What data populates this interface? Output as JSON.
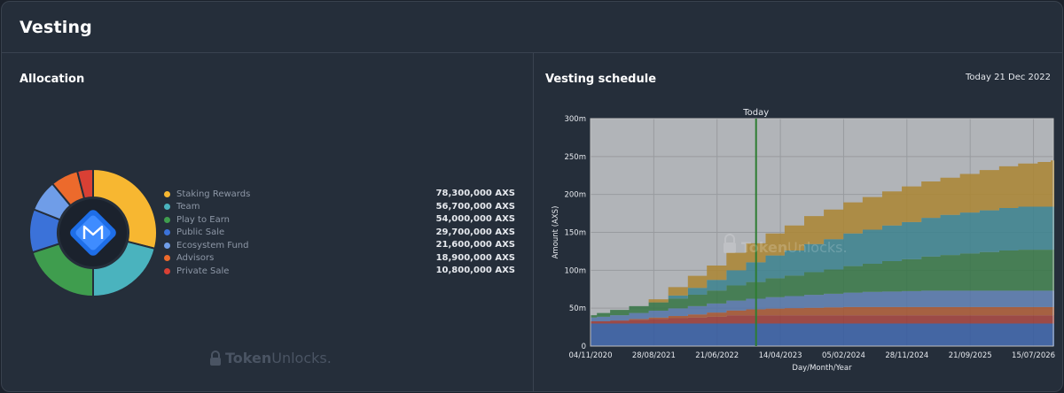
{
  "page": {
    "title": "Vesting",
    "allocation_title": "Allocation",
    "schedule_title": "Vesting schedule",
    "today_label": "Today 21 Dec 2022",
    "watermark": {
      "brand": "Token",
      "suffix": "Unlocks."
    }
  },
  "colors": {
    "staking": "#f7b731",
    "team": "#4ab3be",
    "play": "#3f9d4e",
    "public": "#3b72d9",
    "ecosystem": "#6f9de8",
    "advisors": "#ec6a2c",
    "private": "#d94034",
    "logo": "#1e6ee8"
  },
  "allocation": [
    {
      "name": "Staking Rewards",
      "value_text": "78,300,000 AXS",
      "value": 78300000,
      "color": "#f7b731"
    },
    {
      "name": "Team",
      "value_text": "56,700,000 AXS",
      "value": 56700000,
      "color": "#4ab3be"
    },
    {
      "name": "Play to Earn",
      "value_text": "54,000,000 AXS",
      "value": 54000000,
      "color": "#3f9d4e"
    },
    {
      "name": "Public Sale",
      "value_text": "29,700,000 AXS",
      "value": 29700000,
      "color": "#3b72d9"
    },
    {
      "name": "Ecosystem Fund",
      "value_text": "21,600,000 AXS",
      "value": 21600000,
      "color": "#6f9de8"
    },
    {
      "name": "Advisors",
      "value_text": "18,900,000 AXS",
      "value": 18900000,
      "color": "#ec6a2c"
    },
    {
      "name": "Private Sale",
      "value_text": "10,800,000 AXS",
      "value": 10800000,
      "color": "#d94034"
    }
  ],
  "chart_data": [
    {
      "type": "pie",
      "title": "Allocation",
      "categories": [
        "Staking Rewards",
        "Team",
        "Play to Earn",
        "Public Sale",
        "Ecosystem Fund",
        "Advisors",
        "Private Sale"
      ],
      "values": [
        78300000,
        56700000,
        54000000,
        29700000,
        21600000,
        18900000,
        10800000
      ],
      "donut": true
    },
    {
      "type": "area",
      "title": "Vesting schedule",
      "xlabel": "Day/Month/Year",
      "ylabel": "Amount (AXS)",
      "ylim": [
        0,
        300000000
      ],
      "yticks": [
        "0",
        "50m",
        "100m",
        "150m",
        "200m",
        "250m",
        "300m"
      ],
      "xticks": [
        "04/11/2020",
        "28/08/2021",
        "21/06/2022",
        "14/04/2023",
        "05/02/2024",
        "28/11/2024",
        "21/09/2025",
        "15/07/2026"
      ],
      "today_marker": {
        "label": "Today",
        "date": "21/12/2022"
      },
      "x": [
        "04/11/2020",
        "04/12/2020",
        "04/02/2021",
        "04/05/2021",
        "04/08/2021",
        "04/11/2021",
        "04/02/2022",
        "04/05/2022",
        "04/08/2022",
        "04/11/2022",
        "04/02/2023",
        "04/05/2023",
        "04/08/2023",
        "04/11/2023",
        "04/02/2024",
        "04/05/2024",
        "04/08/2024",
        "04/11/2024",
        "04/02/2025",
        "04/05/2025",
        "04/08/2025",
        "04/11/2025",
        "04/02/2026",
        "04/05/2026",
        "04/08/2026",
        "04/10/2026"
      ],
      "series": [
        {
          "name": "Public Sale",
          "color": "#3b72d9",
          "values": [
            29.7,
            29.7,
            29.7,
            29.7,
            29.7,
            29.7,
            29.7,
            29.7,
            29.7,
            29.7,
            29.7,
            29.7,
            29.7,
            29.7,
            29.7,
            29.7,
            29.7,
            29.7,
            29.7,
            29.7,
            29.7,
            29.7,
            29.7,
            29.7,
            29.7,
            29.7
          ]
        },
        {
          "name": "Private Sale",
          "color": "#d94034",
          "values": [
            3,
            3,
            4,
            5,
            6,
            7,
            8,
            9,
            10.8,
            10.8,
            10.8,
            10.8,
            10.8,
            10.8,
            10.8,
            10.8,
            10.8,
            10.8,
            10.8,
            10.8,
            10.8,
            10.8,
            10.8,
            10.8,
            10.8,
            10.8
          ]
        },
        {
          "name": "Advisors",
          "color": "#ec6a2c",
          "values": [
            0,
            0,
            0,
            1,
            2,
            3,
            4,
            5.5,
            6.5,
            8,
            9,
            9.5,
            10,
            10.5,
            11,
            11,
            11,
            11,
            11,
            11,
            11,
            11,
            11,
            11,
            11,
            11
          ]
        },
        {
          "name": "Ecosystem Fund",
          "color": "#6f9de8",
          "values": [
            5,
            6,
            7,
            8,
            9,
            10,
            11,
            12,
            13,
            14,
            15,
            16,
            17,
            18,
            19,
            20,
            20.5,
            21,
            21.6,
            21.6,
            21.6,
            21.6,
            21.6,
            21.6,
            21.6,
            21.6
          ]
        },
        {
          "name": "Play to Earn",
          "color": "#3f9d4e",
          "values": [
            3,
            5,
            7,
            9,
            11,
            13,
            15,
            17,
            20,
            22,
            25,
            27,
            30,
            32,
            35,
            37,
            40,
            42,
            45,
            47,
            49,
            51,
            53,
            54,
            54,
            54
          ]
        },
        {
          "name": "Team",
          "color": "#4ab3be",
          "values": [
            0,
            0,
            0,
            0,
            0,
            4,
            9,
            14,
            20,
            26,
            30,
            33,
            37,
            40,
            43,
            45,
            47,
            49,
            51,
            53,
            54,
            55,
            56,
            56.7,
            56.7,
            56.7
          ]
        },
        {
          "name": "Staking Rewards",
          "color": "#f7b731",
          "values": [
            0,
            0,
            0,
            0,
            4,
            11,
            16,
            19,
            23,
            25,
            29,
            33,
            37,
            39,
            41,
            43,
            45,
            47,
            48,
            49,
            51,
            53,
            55,
            57,
            59,
            61
          ]
        }
      ]
    }
  ]
}
